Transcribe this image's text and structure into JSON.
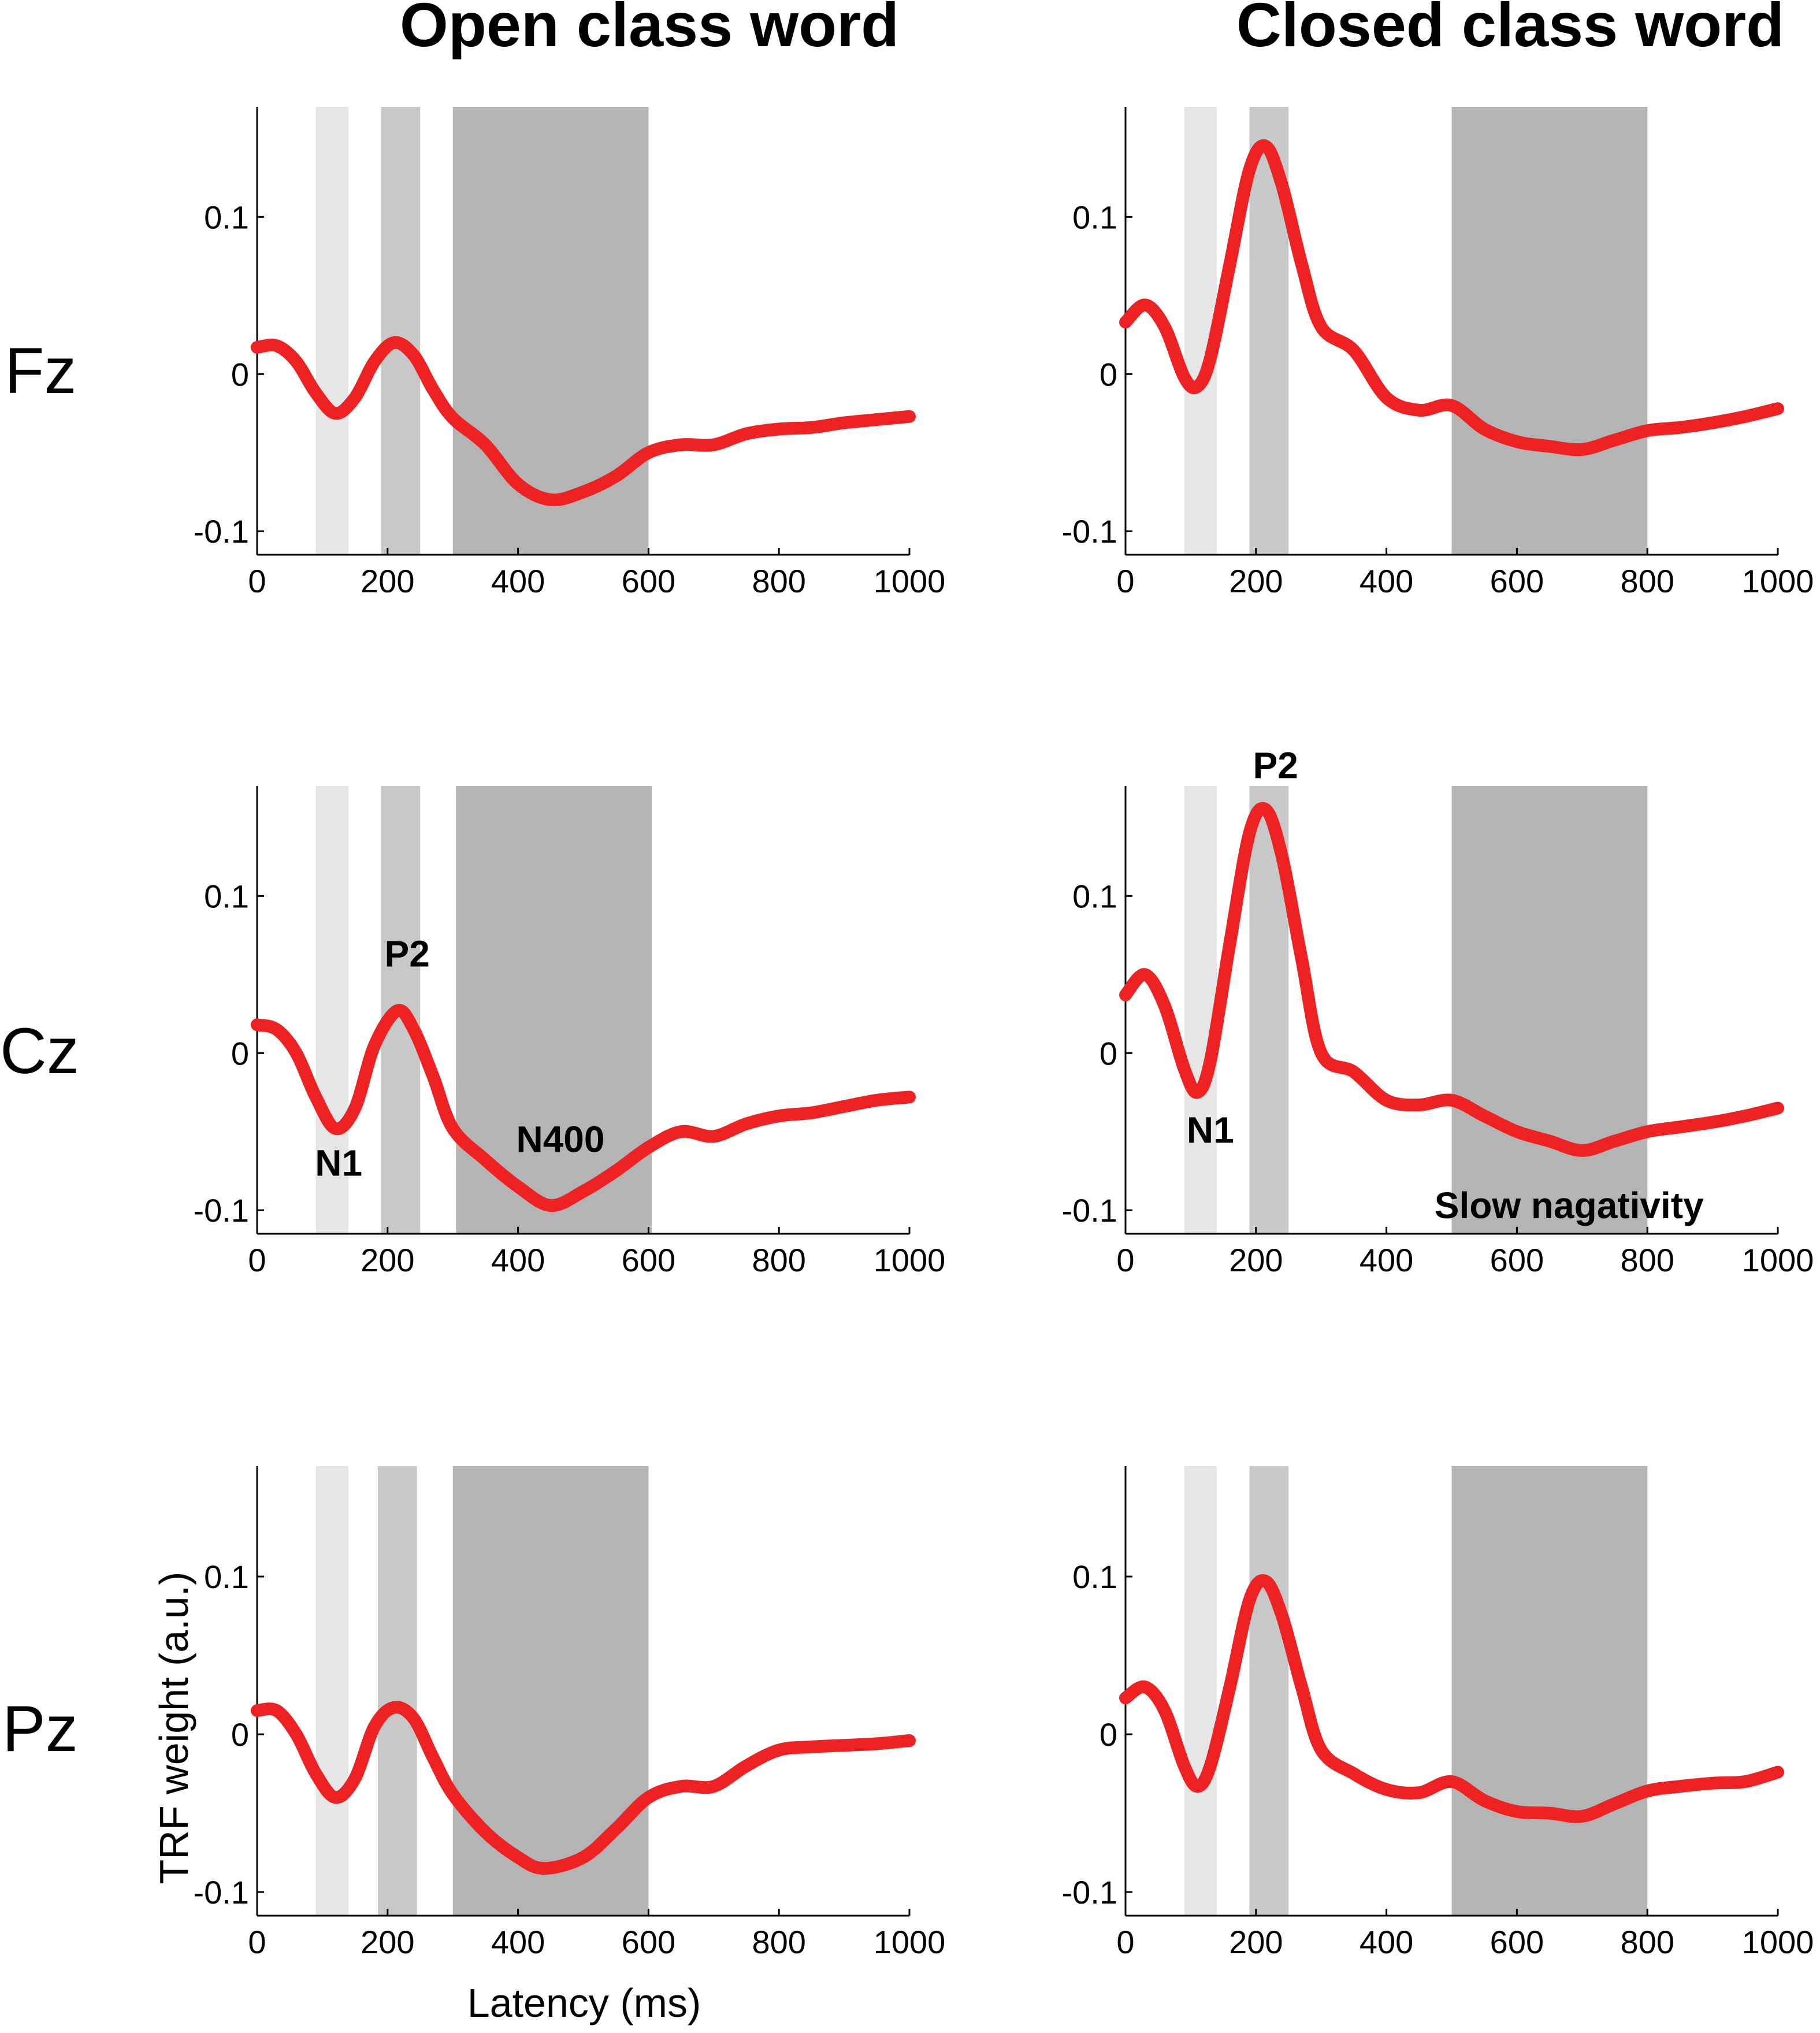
{
  "column_titles": [
    "Open class word",
    "Closed class word"
  ],
  "row_labels": [
    "Fz",
    "Cz",
    "Pz"
  ],
  "chart_data": {
    "type": "line",
    "xlabel": "Latency (ms)",
    "ylabel": "TRF weight (a.u.)",
    "xlim": [
      0,
      1000
    ],
    "ylim": [
      -0.115,
      0.17
    ],
    "xticks": [
      0,
      200,
      400,
      600,
      800,
      1000
    ],
    "xtick_labels": [
      "0",
      "200",
      "400",
      "600",
      "800",
      "1000"
    ],
    "yticks": [
      -0.1,
      0,
      0.1
    ],
    "ytick_labels": [
      "-0.1",
      "0",
      "0.1"
    ],
    "line_color": "#ee2222",
    "panels": [
      {
        "row": "Fz",
        "column": "Open class word",
        "shaded_windows": [
          {
            "start": 90,
            "end": 140,
            "color": "#e6e6e6"
          },
          {
            "start": 190,
            "end": 250,
            "color": "#c8c8c8"
          },
          {
            "start": 300,
            "end": 600,
            "color": "#b4b4b4"
          }
        ],
        "x": [
          0,
          30,
          60,
          90,
          120,
          150,
          180,
          210,
          240,
          270,
          300,
          350,
          400,
          450,
          500,
          550,
          600,
          650,
          700,
          750,
          800,
          850,
          900,
          950,
          1000
        ],
        "y": [
          0.017,
          0.018,
          0.008,
          -0.012,
          -0.025,
          -0.015,
          0.008,
          0.02,
          0.012,
          -0.01,
          -0.028,
          -0.045,
          -0.07,
          -0.08,
          -0.075,
          -0.065,
          -0.05,
          -0.045,
          -0.045,
          -0.038,
          -0.035,
          -0.034,
          -0.031,
          -0.029,
          -0.027
        ],
        "annotations": []
      },
      {
        "row": "Fz",
        "column": "Closed class word",
        "shaded_windows": [
          {
            "start": 90,
            "end": 140,
            "color": "#e6e6e6"
          },
          {
            "start": 190,
            "end": 250,
            "color": "#c8c8c8"
          },
          {
            "start": 500,
            "end": 800,
            "color": "#b4b4b4"
          }
        ],
        "x": [
          0,
          30,
          60,
          90,
          110,
          130,
          160,
          190,
          215,
          240,
          270,
          300,
          350,
          400,
          450,
          500,
          550,
          600,
          650,
          700,
          750,
          800,
          850,
          900,
          950,
          1000
        ],
        "y": [
          0.033,
          0.044,
          0.03,
          -0.002,
          -0.008,
          0.01,
          0.07,
          0.13,
          0.145,
          0.12,
          0.07,
          0.03,
          0.015,
          -0.015,
          -0.023,
          -0.02,
          -0.035,
          -0.043,
          -0.046,
          -0.048,
          -0.042,
          -0.036,
          -0.034,
          -0.031,
          -0.027,
          -0.022
        ],
        "annotations": []
      },
      {
        "row": "Cz",
        "column": "Open class word",
        "shaded_windows": [
          {
            "start": 90,
            "end": 140,
            "color": "#e6e6e6"
          },
          {
            "start": 190,
            "end": 250,
            "color": "#c8c8c8"
          },
          {
            "start": 305,
            "end": 605,
            "color": "#b4b4b4"
          }
        ],
        "x": [
          0,
          30,
          60,
          90,
          120,
          150,
          180,
          215,
          240,
          270,
          300,
          350,
          400,
          450,
          500,
          550,
          600,
          650,
          700,
          750,
          800,
          850,
          900,
          950,
          1000
        ],
        "y": [
          0.018,
          0.015,
          0.0,
          -0.028,
          -0.048,
          -0.035,
          0.005,
          0.027,
          0.015,
          -0.015,
          -0.048,
          -0.068,
          -0.085,
          -0.097,
          -0.088,
          -0.075,
          -0.06,
          -0.05,
          -0.053,
          -0.045,
          -0.04,
          -0.038,
          -0.034,
          -0.03,
          -0.028
        ],
        "annotations": [
          {
            "text": "N1",
            "x": 125,
            "y": -0.078
          },
          {
            "text": "P2",
            "x": 230,
            "y": 0.055
          },
          {
            "text": "N400",
            "x": 465,
            "y": -0.063
          }
        ]
      },
      {
        "row": "Cz",
        "column": "Closed class word",
        "shaded_windows": [
          {
            "start": 90,
            "end": 140,
            "color": "#e6e6e6"
          },
          {
            "start": 190,
            "end": 250,
            "color": "#c8c8c8"
          },
          {
            "start": 500,
            "end": 800,
            "color": "#b4b4b4"
          }
        ],
        "x": [
          0,
          30,
          60,
          90,
          110,
          130,
          160,
          190,
          215,
          240,
          270,
          300,
          350,
          400,
          450,
          500,
          550,
          600,
          650,
          700,
          750,
          800,
          850,
          900,
          950,
          1000
        ],
        "y": [
          0.037,
          0.05,
          0.03,
          -0.01,
          -0.025,
          -0.005,
          0.07,
          0.14,
          0.155,
          0.125,
          0.06,
          0.0,
          -0.012,
          -0.03,
          -0.033,
          -0.03,
          -0.04,
          -0.05,
          -0.056,
          -0.062,
          -0.056,
          -0.05,
          -0.047,
          -0.044,
          -0.04,
          -0.035
        ],
        "annotations": [
          {
            "text": "N1",
            "x": 130,
            "y": -0.057
          },
          {
            "text": "P2",
            "x": 230,
            "y": 0.175
          },
          {
            "text": "Slow nagativity",
            "x": 680,
            "y": -0.105
          }
        ]
      },
      {
        "row": "Pz",
        "column": "Open class word",
        "shaded_windows": [
          {
            "start": 90,
            "end": 140,
            "color": "#e6e6e6"
          },
          {
            "start": 185,
            "end": 245,
            "color": "#c8c8c8"
          },
          {
            "start": 300,
            "end": 600,
            "color": "#b4b4b4"
          }
        ],
        "x": [
          0,
          30,
          60,
          90,
          120,
          150,
          180,
          210,
          240,
          270,
          300,
          350,
          400,
          440,
          500,
          550,
          600,
          650,
          700,
          750,
          800,
          850,
          900,
          950,
          1000
        ],
        "y": [
          0.015,
          0.015,
          0.0,
          -0.025,
          -0.04,
          -0.028,
          0.005,
          0.017,
          0.01,
          -0.015,
          -0.038,
          -0.062,
          -0.078,
          -0.085,
          -0.078,
          -0.06,
          -0.04,
          -0.033,
          -0.033,
          -0.02,
          -0.01,
          -0.008,
          -0.007,
          -0.006,
          -0.004
        ],
        "annotations": []
      },
      {
        "row": "Pz",
        "column": "Closed class word",
        "shaded_windows": [
          {
            "start": 90,
            "end": 140,
            "color": "#e6e6e6"
          },
          {
            "start": 190,
            "end": 250,
            "color": "#c8c8c8"
          },
          {
            "start": 500,
            "end": 800,
            "color": "#b4b4b4"
          }
        ],
        "x": [
          0,
          30,
          60,
          90,
          110,
          130,
          160,
          190,
          215,
          240,
          270,
          300,
          350,
          400,
          450,
          500,
          550,
          600,
          650,
          700,
          750,
          800,
          850,
          900,
          950,
          1000
        ],
        "y": [
          0.023,
          0.03,
          0.015,
          -0.02,
          -0.033,
          -0.02,
          0.03,
          0.085,
          0.097,
          0.075,
          0.03,
          -0.01,
          -0.025,
          -0.035,
          -0.037,
          -0.03,
          -0.042,
          -0.049,
          -0.05,
          -0.052,
          -0.044,
          -0.036,
          -0.033,
          -0.031,
          -0.03,
          -0.024
        ],
        "annotations": []
      }
    ]
  }
}
